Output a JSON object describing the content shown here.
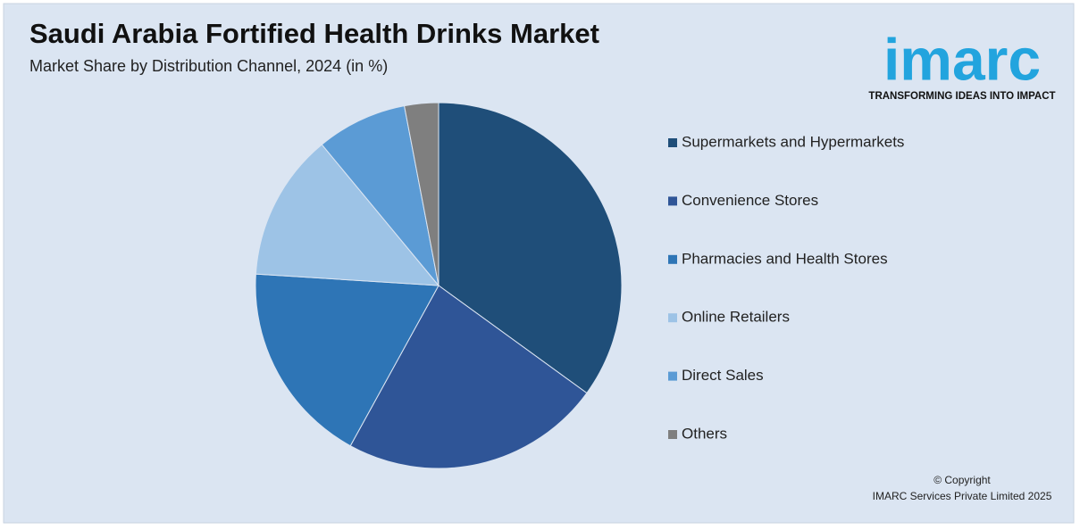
{
  "chart_data": {
    "type": "pie",
    "title": "Saudi Arabia Fortified Health Drinks Market",
    "subtitle": "Market Share by Distribution Channel, 2024 (in %)",
    "categories": [
      "Supermarkets and Hypermarkets",
      "Convenience Stores",
      "Pharmacies and Health Stores",
      "Online Retailers",
      "Direct Sales",
      "Others"
    ],
    "values": [
      35,
      23,
      18,
      13,
      8,
      3
    ],
    "colors": [
      "#1f4e79",
      "#2f5597",
      "#2e75b6",
      "#9dc3e6",
      "#5b9bd5",
      "#7f7f7f"
    ],
    "legend": "right"
  },
  "branding": {
    "logo": "imarc",
    "tagline": "TRANSFORMING IDEAS INTO IMPACT",
    "copyright": [
      "© Copyright",
      "IMARC Services Private Limited 2025"
    ]
  }
}
